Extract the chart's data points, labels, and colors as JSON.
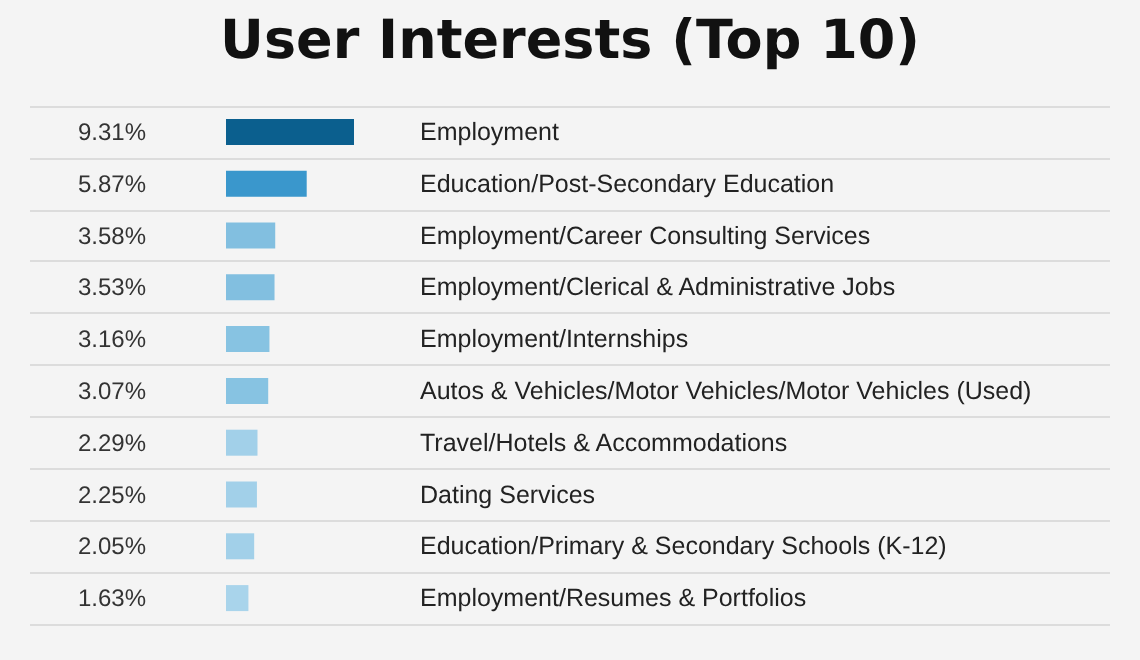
{
  "chart_data": {
    "type": "bar",
    "orientation": "horizontal",
    "title": "User Interests (Top 10)",
    "categories": [
      "Employment",
      "Education/Post-Secondary Education",
      "Employment/Career Consulting Services",
      "Employment/Clerical & Administrative Jobs",
      "Employment/Internships",
      "Autos & Vehicles/Motor Vehicles/Motor Vehicles (Used)",
      "Travel/Hotels & Accommodations",
      "Dating Services",
      "Education/Primary & Secondary Schools (K-12)",
      "Employment/Resumes & Portfolios"
    ],
    "values": [
      9.31,
      5.87,
      3.58,
      3.53,
      3.16,
      3.07,
      2.29,
      2.25,
      2.05,
      1.63
    ],
    "value_labels": [
      "9.31%",
      "5.87%",
      "3.58%",
      "3.53%",
      "3.16%",
      "3.07%",
      "2.29%",
      "2.25%",
      "2.05%",
      "1.63%"
    ],
    "colors": [
      "#0b5f8e",
      "#3a97cc",
      "#82bfe0",
      "#82bfe0",
      "#87c3e2",
      "#87c3e2",
      "#a2d0e9",
      "#a2d0e9",
      "#a2d0e9",
      "#a9d4eb"
    ],
    "grid": "y"
  }
}
